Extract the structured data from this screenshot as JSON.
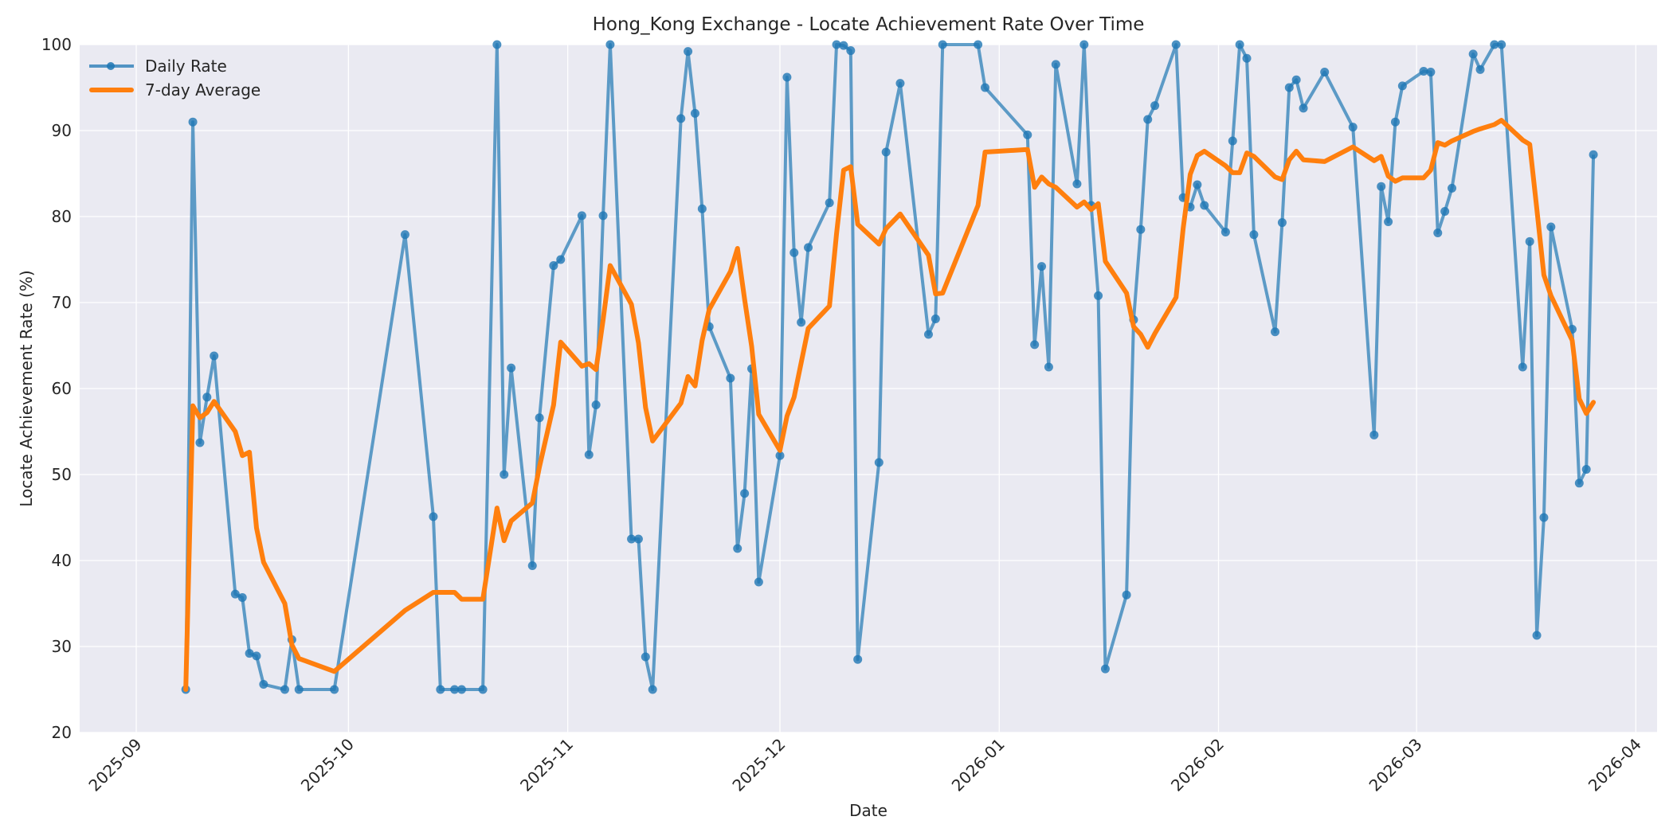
{
  "chart_data": {
    "type": "line",
    "title": "Hong_Kong Exchange - Locate Achievement Rate Over Time",
    "xlabel": "Date",
    "ylabel": "Locate Achievement Rate (%)",
    "ylim": [
      20,
      100
    ],
    "yticks": [
      20,
      30,
      40,
      50,
      60,
      70,
      80,
      90,
      100
    ],
    "xticks": [
      "2025-09",
      "2025-10",
      "2025-11",
      "2025-12",
      "2026-01",
      "2026-02",
      "2026-03",
      "2026-04"
    ],
    "xlim": [
      "2025-08-24",
      "2026-04-04"
    ],
    "grid": true,
    "legend_position": "upper left",
    "colors": {
      "daily": "#1f77b4",
      "avg": "#ff7f0e",
      "plot_bg": "#eaeaf2"
    },
    "series": [
      {
        "name": "Daily Rate",
        "marker": "o",
        "points": [
          [
            "2025-09-08",
            25.0
          ],
          [
            "2025-09-09",
            91.0
          ],
          [
            "2025-09-10",
            53.7
          ],
          [
            "2025-09-11",
            59.0
          ],
          [
            "2025-09-12",
            63.8
          ],
          [
            "2025-09-15",
            36.1
          ],
          [
            "2025-09-16",
            35.7
          ],
          [
            "2025-09-17",
            29.2
          ],
          [
            "2025-09-18",
            28.9
          ],
          [
            "2025-09-19",
            25.6
          ],
          [
            "2025-09-22",
            25.0
          ],
          [
            "2025-09-23",
            30.8
          ],
          [
            "2025-09-24",
            25.0
          ],
          [
            "2025-09-29",
            25.0
          ],
          [
            "2025-10-09",
            77.9
          ],
          [
            "2025-10-13",
            45.1
          ],
          [
            "2025-10-14",
            25.0
          ],
          [
            "2025-10-16",
            25.0
          ],
          [
            "2025-10-17",
            25.0
          ],
          [
            "2025-10-20",
            25.0
          ],
          [
            "2025-10-22",
            100.0
          ],
          [
            "2025-10-23",
            50.0
          ],
          [
            "2025-10-24",
            62.4
          ],
          [
            "2025-10-27",
            39.4
          ],
          [
            "2025-10-28",
            56.6
          ],
          [
            "2025-10-30",
            74.3
          ],
          [
            "2025-10-31",
            75.0
          ],
          [
            "2025-11-03",
            80.1
          ],
          [
            "2025-11-04",
            52.3
          ],
          [
            "2025-11-05",
            58.1
          ],
          [
            "2025-11-06",
            80.1
          ],
          [
            "2025-11-07",
            100.0
          ],
          [
            "2025-11-10",
            42.5
          ],
          [
            "2025-11-11",
            42.5
          ],
          [
            "2025-11-12",
            28.8
          ],
          [
            "2025-11-13",
            25.0
          ],
          [
            "2025-11-17",
            91.4
          ],
          [
            "2025-11-18",
            99.2
          ],
          [
            "2025-11-19",
            92.0
          ],
          [
            "2025-11-20",
            80.9
          ],
          [
            "2025-11-21",
            67.2
          ],
          [
            "2025-11-24",
            61.2
          ],
          [
            "2025-11-25",
            41.4
          ],
          [
            "2025-11-26",
            47.8
          ],
          [
            "2025-11-27",
            62.3
          ],
          [
            "2025-11-28",
            37.5
          ],
          [
            "2025-12-01",
            52.2
          ],
          [
            "2025-12-02",
            96.2
          ],
          [
            "2025-12-03",
            75.8
          ],
          [
            "2025-12-04",
            67.7
          ],
          [
            "2025-12-05",
            76.4
          ],
          [
            "2025-12-08",
            81.6
          ],
          [
            "2025-12-09",
            100.0
          ],
          [
            "2025-12-10",
            99.9
          ],
          [
            "2025-12-11",
            99.3
          ],
          [
            "2025-12-12",
            28.5
          ],
          [
            "2025-12-15",
            51.4
          ],
          [
            "2025-12-16",
            87.5
          ],
          [
            "2025-12-18",
            95.5
          ],
          [
            "2025-12-22",
            66.3
          ],
          [
            "2025-12-23",
            68.1
          ],
          [
            "2025-12-24",
            100.0
          ],
          [
            "2025-12-29",
            100.0
          ],
          [
            "2025-12-30",
            95.0
          ],
          [
            "2026-01-05",
            89.5
          ],
          [
            "2026-01-06",
            65.1
          ],
          [
            "2026-01-07",
            74.2
          ],
          [
            "2026-01-08",
            62.5
          ],
          [
            "2026-01-09",
            97.7
          ],
          [
            "2026-01-12",
            83.8
          ],
          [
            "2026-01-13",
            100.0
          ],
          [
            "2026-01-14",
            81.3
          ],
          [
            "2026-01-15",
            70.8
          ],
          [
            "2026-01-16",
            27.4
          ],
          [
            "2026-01-19",
            36.0
          ],
          [
            "2026-01-20",
            68.0
          ],
          [
            "2026-01-21",
            78.5
          ],
          [
            "2026-01-22",
            91.3
          ],
          [
            "2026-01-23",
            92.9
          ],
          [
            "2026-01-26",
            100.0
          ],
          [
            "2026-01-27",
            82.2
          ],
          [
            "2026-01-28",
            81.1
          ],
          [
            "2026-01-29",
            83.7
          ],
          [
            "2026-01-30",
            81.3
          ],
          [
            "2026-02-02",
            78.2
          ],
          [
            "2026-02-03",
            88.8
          ],
          [
            "2026-02-04",
            100.0
          ],
          [
            "2026-02-05",
            98.4
          ],
          [
            "2026-02-06",
            77.9
          ],
          [
            "2026-02-09",
            66.6
          ],
          [
            "2026-02-10",
            79.3
          ],
          [
            "2026-02-11",
            95.0
          ],
          [
            "2026-02-12",
            95.9
          ],
          [
            "2026-02-13",
            92.6
          ],
          [
            "2026-02-16",
            96.8
          ],
          [
            "2026-02-20",
            90.4
          ],
          [
            "2026-02-23",
            54.6
          ],
          [
            "2026-02-24",
            83.5
          ],
          [
            "2026-02-25",
            79.4
          ],
          [
            "2026-02-26",
            91.0
          ],
          [
            "2026-02-27",
            95.2
          ],
          [
            "2026-03-02",
            96.9
          ],
          [
            "2026-03-03",
            96.8
          ],
          [
            "2026-03-04",
            78.1
          ],
          [
            "2026-03-05",
            80.6
          ],
          [
            "2026-03-06",
            83.3
          ],
          [
            "2026-03-09",
            98.9
          ],
          [
            "2026-03-10",
            97.1
          ],
          [
            "2026-03-12",
            100.0
          ],
          [
            "2026-03-13",
            100.0
          ],
          [
            "2026-03-16",
            62.5
          ],
          [
            "2026-03-17",
            77.1
          ],
          [
            "2026-03-18",
            31.3
          ],
          [
            "2026-03-19",
            45.0
          ],
          [
            "2026-03-20",
            78.8
          ],
          [
            "2026-03-23",
            66.9
          ],
          [
            "2026-03-24",
            49.0
          ],
          [
            "2026-03-25",
            50.6
          ],
          [
            "2026-03-26",
            87.2
          ]
        ]
      },
      {
        "name": "7-day Average",
        "marker": "none",
        "points": [
          [
            "2025-09-08",
            25.0
          ],
          [
            "2025-09-09",
            58.0
          ],
          [
            "2025-09-10",
            56.6
          ],
          [
            "2025-09-11",
            57.2
          ],
          [
            "2025-09-12",
            58.5
          ],
          [
            "2025-09-15",
            55.0
          ],
          [
            "2025-09-16",
            52.2
          ],
          [
            "2025-09-17",
            52.6
          ],
          [
            "2025-09-18",
            43.8
          ],
          [
            "2025-09-19",
            39.8
          ],
          [
            "2025-09-22",
            35.0
          ],
          [
            "2025-09-23",
            30.2
          ],
          [
            "2025-09-24",
            28.6
          ],
          [
            "2025-09-29",
            27.1
          ],
          [
            "2025-10-09",
            34.2
          ],
          [
            "2025-10-13",
            36.3
          ],
          [
            "2025-10-14",
            36.3
          ],
          [
            "2025-10-16",
            36.3
          ],
          [
            "2025-10-17",
            35.5
          ],
          [
            "2025-10-20",
            35.5
          ],
          [
            "2025-10-22",
            46.1
          ],
          [
            "2025-10-23",
            42.3
          ],
          [
            "2025-10-24",
            44.6
          ],
          [
            "2025-10-27",
            46.7
          ],
          [
            "2025-10-28",
            50.9
          ],
          [
            "2025-10-30",
            58.1
          ],
          [
            "2025-10-31",
            65.4
          ],
          [
            "2025-11-03",
            62.6
          ],
          [
            "2025-11-04",
            62.9
          ],
          [
            "2025-11-05",
            62.2
          ],
          [
            "2025-11-06",
            68.0
          ],
          [
            "2025-11-07",
            74.3
          ],
          [
            "2025-11-10",
            69.8
          ],
          [
            "2025-11-11",
            65.3
          ],
          [
            "2025-11-12",
            57.8
          ],
          [
            "2025-11-13",
            53.9
          ],
          [
            "2025-11-17",
            58.3
          ],
          [
            "2025-11-18",
            61.4
          ],
          [
            "2025-11-19",
            60.3
          ],
          [
            "2025-11-20",
            65.6
          ],
          [
            "2025-11-21",
            69.2
          ],
          [
            "2025-11-24",
            73.6
          ],
          [
            "2025-11-25",
            76.3
          ],
          [
            "2025-11-26",
            70.4
          ],
          [
            "2025-11-27",
            64.9
          ],
          [
            "2025-11-28",
            57.0
          ],
          [
            "2025-12-01",
            52.8
          ],
          [
            "2025-12-02",
            56.8
          ],
          [
            "2025-12-03",
            59.0
          ],
          [
            "2025-12-04",
            63.0
          ],
          [
            "2025-12-05",
            67.0
          ],
          [
            "2025-12-08",
            69.6
          ],
          [
            "2025-12-09",
            78.0
          ],
          [
            "2025-12-10",
            85.4
          ],
          [
            "2025-12-11",
            85.8
          ],
          [
            "2025-12-12",
            79.1
          ],
          [
            "2025-12-15",
            76.8
          ],
          [
            "2025-12-16",
            78.6
          ],
          [
            "2025-12-18",
            80.3
          ],
          [
            "2025-12-22",
            75.5
          ],
          [
            "2025-12-23",
            71.0
          ],
          [
            "2025-12-24",
            71.1
          ],
          [
            "2025-12-29",
            81.3
          ],
          [
            "2025-12-30",
            87.5
          ],
          [
            "2026-01-05",
            87.8
          ],
          [
            "2026-01-06",
            83.4
          ],
          [
            "2026-01-07",
            84.6
          ],
          [
            "2026-01-08",
            83.8
          ],
          [
            "2026-01-09",
            83.4
          ],
          [
            "2026-01-12",
            81.1
          ],
          [
            "2026-01-13",
            81.7
          ],
          [
            "2026-01-14",
            80.8
          ],
          [
            "2026-01-15",
            81.5
          ],
          [
            "2026-01-16",
            74.8
          ],
          [
            "2026-01-19",
            71.1
          ],
          [
            "2026-01-20",
            67.2
          ],
          [
            "2026-01-21",
            66.3
          ],
          [
            "2026-01-22",
            64.8
          ],
          [
            "2026-01-23",
            66.4
          ],
          [
            "2026-01-26",
            70.6
          ],
          [
            "2026-01-27",
            78.6
          ],
          [
            "2026-01-28",
            84.9
          ],
          [
            "2026-01-29",
            87.1
          ],
          [
            "2026-01-30",
            87.6
          ],
          [
            "2026-02-02",
            85.9
          ],
          [
            "2026-02-03",
            85.1
          ],
          [
            "2026-02-04",
            85.1
          ],
          [
            "2026-02-05",
            87.4
          ],
          [
            "2026-02-06",
            87.0
          ],
          [
            "2026-02-09",
            84.6
          ],
          [
            "2026-02-10",
            84.3
          ],
          [
            "2026-02-11",
            86.6
          ],
          [
            "2026-02-12",
            87.6
          ],
          [
            "2026-02-13",
            86.6
          ],
          [
            "2026-02-16",
            86.4
          ],
          [
            "2026-02-20",
            88.1
          ],
          [
            "2026-02-23",
            86.5
          ],
          [
            "2026-02-24",
            87.0
          ],
          [
            "2026-02-25",
            84.7
          ],
          [
            "2026-02-26",
            84.1
          ],
          [
            "2026-02-27",
            84.5
          ],
          [
            "2026-03-02",
            84.5
          ],
          [
            "2026-03-03",
            85.4
          ],
          [
            "2026-03-04",
            88.6
          ],
          [
            "2026-03-05",
            88.3
          ],
          [
            "2026-03-06",
            88.8
          ],
          [
            "2026-03-09",
            89.9
          ],
          [
            "2026-03-10",
            90.2
          ],
          [
            "2026-03-12",
            90.7
          ],
          [
            "2026-03-13",
            91.2
          ],
          [
            "2026-03-16",
            88.9
          ],
          [
            "2026-03-17",
            88.4
          ],
          [
            "2026-03-18",
            80.9
          ],
          [
            "2026-03-19",
            73.2
          ],
          [
            "2026-03-20",
            70.8
          ],
          [
            "2026-03-23",
            65.6
          ],
          [
            "2026-03-24",
            58.8
          ],
          [
            "2026-03-25",
            57.1
          ],
          [
            "2026-03-26",
            58.4
          ]
        ]
      }
    ]
  },
  "legend": {
    "items": [
      {
        "label": "Daily Rate"
      },
      {
        "label": "7-day Average"
      }
    ]
  }
}
